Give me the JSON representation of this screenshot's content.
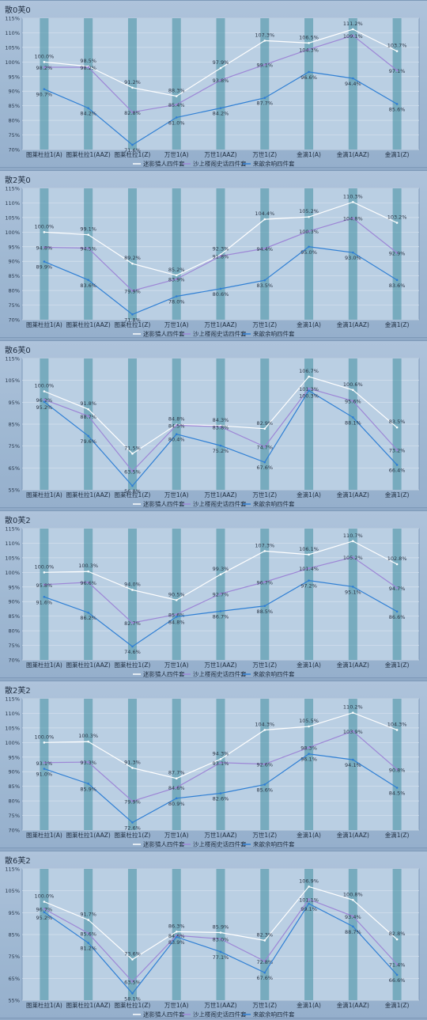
{
  "colors": {
    "series1": "#ffffff",
    "series2": "#9d86d6",
    "series3": "#2f7fd4",
    "bands": "#3f8ea0"
  },
  "chart_data": [
    {
      "type": "line",
      "title": "散0芙0",
      "categories": [
        "图莱杜拉1(A)",
        "图莱杜拉1(AAZ)",
        "图莱杜拉1(Z)",
        "万世1(A)",
        "万世1(AAZ)",
        "万世1(Z)",
        "金滴1(A)",
        "金滴1(AAZ)",
        "金滴1(Z)"
      ],
      "y_ticks": [
        "70%",
        "75%",
        "80%",
        "85%",
        "90%",
        "95%",
        "100%",
        "105%",
        "110%",
        "115%"
      ],
      "ylim": [
        70,
        115
      ],
      "legend_position": "bottom",
      "series": [
        {
          "name": "迷影猎人四件套",
          "values": [
            100.0,
            98.5,
            91.2,
            88.3,
            97.9,
            107.3,
            106.5,
            111.2,
            103.7
          ],
          "labels": [
            "100.0%",
            "98.5%",
            "91.2%",
            "88.3%",
            "97.9%",
            "107.3%",
            "106.5%",
            "111.2%",
            "103.7%"
          ]
        },
        {
          "name": "沙上楼阁史话四件套",
          "values": [
            98.2,
            98.2,
            82.8,
            85.4,
            93.8,
            99.1,
            104.3,
            109.1,
            97.1
          ],
          "labels": [
            "98.2%",
            "98.2%",
            "82.8%",
            "85.4%",
            "93.8%",
            "99.1%",
            "104.3%",
            "109.1%",
            "97.1%"
          ]
        },
        {
          "name": "来歆余响四件套",
          "values": [
            90.7,
            84.2,
            71.6,
            81.0,
            84.2,
            87.7,
            96.6,
            94.4,
            85.6
          ],
          "labels": [
            "90.7%",
            "84.2%",
            "71.6%",
            "81.0%",
            "84.2%",
            "87.7%",
            "96.6%",
            "94.4%",
            "85.6%"
          ]
        }
      ]
    },
    {
      "type": "line",
      "title": "散2芙0",
      "categories": [
        "图莱杜拉1(A)",
        "图莱杜拉1(AAZ)",
        "图莱杜拉1(Z)",
        "万世1(A)",
        "万世1(AAZ)",
        "万世1(Z)",
        "金滴1(A)",
        "金滴1(AAZ)",
        "金滴1(Z)"
      ],
      "y_ticks": [
        "70%",
        "75%",
        "80%",
        "85%",
        "90%",
        "95%",
        "100%",
        "105%",
        "110%",
        "115%"
      ],
      "ylim": [
        70,
        115
      ],
      "legend_position": "bottom",
      "series": [
        {
          "name": "迷影猎人四件套",
          "values": [
            100.0,
            99.1,
            89.2,
            85.2,
            92.3,
            104.4,
            105.2,
            110.3,
            103.2
          ],
          "labels": [
            "100.0%",
            "99.1%",
            "89.2%",
            "85.2%",
            "92.3%",
            "104.4%",
            "105.2%",
            "110.3%",
            "103.2%"
          ]
        },
        {
          "name": "沙上楼阁史话四件套",
          "values": [
            94.8,
            94.5,
            79.9,
            83.9,
            91.8,
            94.4,
            100.3,
            104.8,
            92.9
          ],
          "labels": [
            "94.8%",
            "94.5%",
            "79.9%",
            "83.9%",
            "91.8%",
            "94.4%",
            "100.3%",
            "104.8%",
            "92.9%"
          ]
        },
        {
          "name": "来歆余响四件套",
          "values": [
            89.9,
            83.6,
            71.8,
            78.0,
            80.6,
            83.5,
            95.0,
            93.0,
            83.6
          ],
          "labels": [
            "89.9%",
            "83.6%",
            "71.8%",
            "78.0%",
            "80.6%",
            "83.5%",
            "95.0%",
            "93.0%",
            "83.6%"
          ]
        }
      ]
    },
    {
      "type": "line",
      "title": "散6芙0",
      "categories": [
        "图莱杜拉1(A)",
        "图莱杜拉1(AAZ)",
        "图莱杜拉1(Z)",
        "万世1(A)",
        "万世1(AAZ)",
        "万世1(Z)",
        "金滴1(A)",
        "金滴1(AAZ)",
        "金滴1(Z)"
      ],
      "y_ticks": [
        "55%",
        "65%",
        "75%",
        "85%",
        "95%",
        "105%",
        "115%"
      ],
      "ylim": [
        55,
        115
      ],
      "legend_position": "bottom",
      "series": [
        {
          "name": "迷影猎人四件套",
          "values": [
            100.0,
            91.8,
            71.5,
            84.8,
            84.3,
            82.9,
            106.7,
            100.6,
            83.5
          ],
          "labels": [
            "100.0%",
            "91.8%",
            "71.5%",
            "84.8%",
            "84.3%",
            "82.9%",
            "106.7%",
            "100.6%",
            "83.5%"
          ]
        },
        {
          "name": "沙上楼阁史话四件套",
          "values": [
            96.2,
            88.7,
            63.5,
            84.5,
            83.8,
            74.7,
            101.3,
            95.6,
            73.2
          ],
          "labels": [
            "96.2%",
            "88.7%",
            "63.5%",
            "84.5%",
            "83.8%",
            "74.7%",
            "101.3%",
            "95.6%",
            "73.2%"
          ]
        },
        {
          "name": "来歆余响四件套",
          "values": [
            95.2,
            79.6,
            56.8,
            80.4,
            75.2,
            67.6,
            100.3,
            88.1,
            66.4
          ],
          "labels": [
            "95.2%",
            "79.6%",
            "56.8%",
            "80.4%",
            "75.2%",
            "67.6%",
            "100.3%",
            "88.1%",
            "66.4%"
          ]
        }
      ]
    },
    {
      "type": "line",
      "title": "散0芙2",
      "categories": [
        "图莱杜拉1(A)",
        "图莱杜拉1(AAZ)",
        "图莱杜拉1(Z)",
        "万世1(A)",
        "万世1(AAZ)",
        "万世1(Z)",
        "金滴1(A)",
        "金滴1(AAZ)",
        "金滴1(Z)"
      ],
      "y_ticks": [
        "70%",
        "75%",
        "80%",
        "85%",
        "90%",
        "95%",
        "100%",
        "105%",
        "110%",
        "115%"
      ],
      "ylim": [
        70,
        115
      ],
      "legend_position": "bottom",
      "series": [
        {
          "name": "迷影猎人四件套",
          "values": [
            100.0,
            100.3,
            94.0,
            90.5,
            99.3,
            107.3,
            106.1,
            110.7,
            102.8
          ],
          "labels": [
            "100.0%",
            "100.3%",
            "94.0%",
            "90.5%",
            "99.3%",
            "107.3%",
            "106.1%",
            "110.7%",
            "102.8%"
          ]
        },
        {
          "name": "沙上楼阁史话四件套",
          "values": [
            95.8,
            96.6,
            82.7,
            85.6,
            92.7,
            96.7,
            101.4,
            105.2,
            94.7
          ],
          "labels": [
            "95.8%",
            "96.6%",
            "82.7%",
            "85.6%",
            "92.7%",
            "96.7%",
            "101.4%",
            "105.2%",
            "94.7%"
          ]
        },
        {
          "name": "来歆余响四件套",
          "values": [
            91.6,
            86.2,
            74.6,
            84.8,
            86.7,
            88.5,
            97.2,
            95.1,
            86.6
          ],
          "labels": [
            "91.6%",
            "86.2%",
            "74.6%",
            "84.8%",
            "86.7%",
            "88.5%",
            "97.2%",
            "95.1%",
            "86.6%"
          ]
        }
      ]
    },
    {
      "type": "line",
      "title": "散2芙2",
      "categories": [
        "图莱杜拉1(A)",
        "图莱杜拉1(AAZ)",
        "图莱杜拉1(Z)",
        "万世1(A)",
        "万世1(AAZ)",
        "万世1(Z)",
        "金滴1(A)",
        "金滴1(AAZ)",
        "金滴1(Z)"
      ],
      "y_ticks": [
        "70%",
        "75%",
        "80%",
        "85%",
        "90%",
        "95%",
        "100%",
        "105%",
        "110%",
        "115%"
      ],
      "ylim": [
        70,
        115
      ],
      "legend_position": "bottom",
      "series": [
        {
          "name": "迷影猎人四件套",
          "values": [
            100.0,
            100.3,
            91.3,
            87.7,
            94.3,
            104.3,
            105.5,
            110.2,
            104.3
          ],
          "labels": [
            "100.0%",
            "100.3%",
            "91.3%",
            "87.7%",
            "94.3%",
            "104.3%",
            "105.5%",
            "110.2%",
            "104.3%"
          ]
        },
        {
          "name": "沙上楼阁史话四件套",
          "values": [
            93.1,
            93.3,
            79.9,
            84.6,
            93.1,
            92.6,
            98.3,
            103.9,
            90.8
          ],
          "labels": [
            "93.1%",
            "93.3%",
            "79.9%",
            "84.6%",
            "93.1%",
            "92.6%",
            "98.3%",
            "103.9%",
            "90.8%"
          ]
        },
        {
          "name": "来歆余响四件套",
          "values": [
            91.0,
            85.9,
            72.6,
            80.9,
            82.6,
            85.6,
            96.1,
            94.1,
            84.5
          ],
          "labels": [
            "91.0%",
            "85.9%",
            "72.6%",
            "80.9%",
            "82.6%",
            "85.6%",
            "96.1%",
            "94.1%",
            "84.5%"
          ]
        }
      ]
    },
    {
      "type": "line",
      "title": "散6芙2",
      "categories": [
        "图莱杜拉1(A)",
        "图莱杜拉1(AAZ)",
        "图莱杜拉1(Z)",
        "万世1(A)",
        "万世1(AAZ)",
        "万世1(Z)",
        "金滴1(A)",
        "金滴1(AAZ)",
        "金滴1(Z)"
      ],
      "y_ticks": [
        "55%",
        "65%",
        "75%",
        "85%",
        "95%",
        "105%",
        "115%"
      ],
      "ylim": [
        55,
        115
      ],
      "legend_position": "bottom",
      "series": [
        {
          "name": "迷影猎人四件套",
          "values": [
            100.0,
            91.7,
            73.6,
            86.3,
            85.9,
            82.3,
            106.9,
            100.8,
            82.8
          ],
          "labels": [
            "100.0%",
            "91.7%",
            "73.6%",
            "86.3%",
            "85.9%",
            "82.3%",
            "106.9%",
            "100.8%",
            "82.8%"
          ]
        },
        {
          "name": "沙上楼阁史话四件套",
          "values": [
            96.7,
            85.6,
            63.5,
            84.6,
            83.0,
            72.8,
            101.1,
            93.4,
            71.4
          ],
          "labels": [
            "96.7%",
            "85.6%",
            "63.5%",
            "84.6%",
            "83.0%",
            "72.8%",
            "101.1%",
            "93.4%",
            "71.4%"
          ]
        },
        {
          "name": "来歆余响四件套",
          "values": [
            95.2,
            81.2,
            58.1,
            83.9,
            77.1,
            67.6,
            99.1,
            88.7,
            66.6
          ],
          "labels": [
            "95.2%",
            "81.2%",
            "58.1%",
            "83.9%",
            "77.1%",
            "67.6%",
            "99.1%",
            "88.7%",
            "66.6%"
          ]
        }
      ]
    }
  ]
}
